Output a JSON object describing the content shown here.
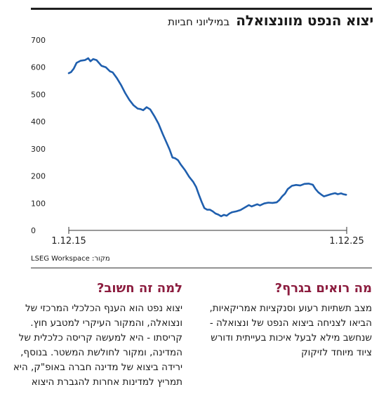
{
  "header": {
    "title": "יצוא הנפט מוונצואלה",
    "subtitle": "במיליוני חביות"
  },
  "source": {
    "label": "מקור:",
    "name": "LSEG Workspace"
  },
  "sections": {
    "right": {
      "heading": "מה רואים בגרף?",
      "body": "מצב תשתיות רעוע וסנקציות אמריקאיות, הביאו לצניחה ביצוא הנפט של ונצואלה - שנחשב מילא לבעל איכות בעייתית ודורש ציוד מיוחד לזיקוק"
    },
    "left": {
      "heading": "למה זה חשוב?",
      "body": "יצוא נפט הוא הענף הכלכלי המרכזי של ונצואלה, והמקור העיקרי למטבע חוץ. קריסתו - היא למעשה קריסה כלכלית של המדינה, ומקור לחולשת המשטר. בנוסף, ירידה ביצוא של מדינה חברה באופ\"ק, היא תמריץ למדינות אחרות להגברת היצוא"
    }
  },
  "chart_data": {
    "type": "line",
    "title": "יצוא הנפט מוונצואלה",
    "ylabel": "במיליוני חביות",
    "ylim": [
      0,
      700
    ],
    "yticks": [
      0,
      100,
      200,
      300,
      400,
      500,
      600,
      700
    ],
    "x_tick_labels": [
      "1.12.15",
      "1.12.25"
    ],
    "x_range": [
      2015.92,
      2025.92
    ],
    "grid": false,
    "series": [
      {
        "color": "#1f5fae",
        "points": [
          [
            2015.92,
            578
          ],
          [
            2016.0,
            582
          ],
          [
            2016.1,
            595
          ],
          [
            2016.2,
            616
          ],
          [
            2016.35,
            624
          ],
          [
            2016.5,
            626
          ],
          [
            2016.62,
            633
          ],
          [
            2016.7,
            622
          ],
          [
            2016.8,
            630
          ],
          [
            2016.92,
            626
          ],
          [
            2017.1,
            605
          ],
          [
            2017.25,
            600
          ],
          [
            2017.4,
            585
          ],
          [
            2017.5,
            581
          ],
          [
            2017.65,
            560
          ],
          [
            2017.8,
            535
          ],
          [
            2017.95,
            505
          ],
          [
            2018.1,
            480
          ],
          [
            2018.25,
            460
          ],
          [
            2018.4,
            448
          ],
          [
            2018.5,
            446
          ],
          [
            2018.6,
            442
          ],
          [
            2018.72,
            453
          ],
          [
            2018.85,
            445
          ],
          [
            2019.0,
            420
          ],
          [
            2019.15,
            392
          ],
          [
            2019.3,
            355
          ],
          [
            2019.45,
            320
          ],
          [
            2019.55,
            297
          ],
          [
            2019.65,
            268
          ],
          [
            2019.75,
            265
          ],
          [
            2019.85,
            258
          ],
          [
            2019.95,
            242
          ],
          [
            2020.1,
            222
          ],
          [
            2020.25,
            197
          ],
          [
            2020.4,
            178
          ],
          [
            2020.5,
            160
          ],
          [
            2020.6,
            132
          ],
          [
            2020.7,
            105
          ],
          [
            2020.8,
            82
          ],
          [
            2020.9,
            76
          ],
          [
            2021.0,
            76
          ],
          [
            2021.1,
            70
          ],
          [
            2021.2,
            62
          ],
          [
            2021.3,
            58
          ],
          [
            2021.4,
            52
          ],
          [
            2021.5,
            57
          ],
          [
            2021.6,
            54
          ],
          [
            2021.7,
            62
          ],
          [
            2021.8,
            67
          ],
          [
            2021.95,
            70
          ],
          [
            2022.1,
            75
          ],
          [
            2022.25,
            84
          ],
          [
            2022.4,
            93
          ],
          [
            2022.5,
            88
          ],
          [
            2022.6,
            92
          ],
          [
            2022.7,
            96
          ],
          [
            2022.8,
            92
          ],
          [
            2022.95,
            99
          ],
          [
            2023.1,
            102
          ],
          [
            2023.25,
            101
          ],
          [
            2023.4,
            103
          ],
          [
            2023.5,
            112
          ],
          [
            2023.6,
            125
          ],
          [
            2023.7,
            135
          ],
          [
            2023.8,
            152
          ],
          [
            2023.95,
            164
          ],
          [
            2024.1,
            167
          ],
          [
            2024.25,
            165
          ],
          [
            2024.4,
            171
          ],
          [
            2024.55,
            172
          ],
          [
            2024.7,
            168
          ],
          [
            2024.8,
            152
          ],
          [
            2024.9,
            140
          ],
          [
            2025.0,
            132
          ],
          [
            2025.1,
            125
          ],
          [
            2025.2,
            128
          ],
          [
            2025.35,
            133
          ],
          [
            2025.5,
            137
          ],
          [
            2025.6,
            133
          ],
          [
            2025.72,
            136
          ],
          [
            2025.8,
            133
          ],
          [
            2025.9,
            131
          ]
        ]
      }
    ]
  }
}
